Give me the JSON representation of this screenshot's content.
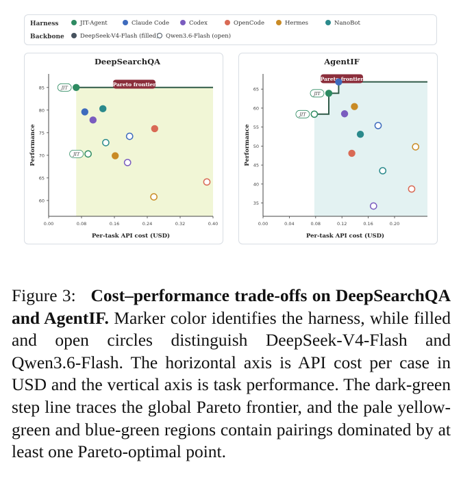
{
  "legend": {
    "harness_label": "Harness",
    "backbone_label": "Backbone",
    "harnesses": [
      {
        "name": "JIT-Agent",
        "color": "#2e8b62"
      },
      {
        "name": "Claude Code",
        "color": "#3e6bbd"
      },
      {
        "name": "Codex",
        "color": "#7a5cbf"
      },
      {
        "name": "OpenCode",
        "color": "#d96a55"
      },
      {
        "name": "Hermes",
        "color": "#c98b25"
      },
      {
        "name": "NanoBot",
        "color": "#2b8a8c"
      }
    ],
    "backbones": [
      {
        "name": "DeepSeek-V4-Flash (filled)",
        "style": "filled",
        "color": "#46525e"
      },
      {
        "name": "Qwen3.6-Flash (open)",
        "style": "open",
        "color": "#46525e"
      }
    ]
  },
  "colors": {
    "frontier": "#2f5a47",
    "pareto_badge": "#8b2e3b",
    "region_deepsearch": "#f1f6d6",
    "region_agentif": "#e3f2f2",
    "jit_label": "#2e8b62"
  },
  "chart_data": [
    {
      "type": "scatter",
      "title": "DeepSearchQA",
      "xlabel": "Per-task API cost (USD)",
      "ylabel": "Performance",
      "xlim": [
        0,
        0.4
      ],
      "ylim": [
        56.5,
        88
      ],
      "xticks": [
        0.0,
        0.08,
        0.16,
        0.24,
        0.32,
        0.4
      ],
      "yticks": [
        60,
        65,
        70,
        75,
        80,
        85
      ],
      "xtick_labels": [
        "0.00",
        "0.08",
        "0.16",
        "0.24",
        "0.32",
        "0.40"
      ],
      "ytick_labels": [
        "60",
        "65",
        "70",
        "75",
        "80",
        "85"
      ],
      "grid": false,
      "frontier_label": "Pareto frontier",
      "frontier": [
        [
          0.067,
          85
        ],
        [
          0.4,
          85
        ]
      ],
      "dominated_region": {
        "x0": 0.067,
        "y_top": 85
      },
      "points": [
        {
          "harness": "JIT-Agent",
          "backbone": "filled",
          "x": 0.067,
          "y": 85.0,
          "label": "JIT"
        },
        {
          "harness": "Claude Code",
          "backbone": "filled",
          "x": 0.088,
          "y": 79.6
        },
        {
          "harness": "Codex",
          "backbone": "filled",
          "x": 0.108,
          "y": 77.8
        },
        {
          "harness": "NanoBot",
          "backbone": "filled",
          "x": 0.132,
          "y": 80.3
        },
        {
          "harness": "OpenCode",
          "backbone": "filled",
          "x": 0.258,
          "y": 75.9
        },
        {
          "harness": "Hermes",
          "backbone": "filled",
          "x": 0.162,
          "y": 69.9
        },
        {
          "harness": "JIT-Agent",
          "backbone": "open",
          "x": 0.096,
          "y": 70.3,
          "label": "JIT"
        },
        {
          "harness": "Claude Code",
          "backbone": "open",
          "x": 0.197,
          "y": 74.2
        },
        {
          "harness": "NanoBot",
          "backbone": "open",
          "x": 0.139,
          "y": 72.8
        },
        {
          "harness": "Codex",
          "backbone": "open",
          "x": 0.192,
          "y": 68.4
        },
        {
          "harness": "Hermes",
          "backbone": "open",
          "x": 0.256,
          "y": 60.8
        },
        {
          "harness": "OpenCode",
          "backbone": "open",
          "x": 0.385,
          "y": 64.1
        }
      ]
    },
    {
      "type": "scatter",
      "title": "AgentIF",
      "xlabel": "Per-task API cost (USD)",
      "ylabel": "Performance",
      "xlim": [
        0,
        0.25
      ],
      "ylim": [
        31.5,
        69
      ],
      "xticks": [
        0.0,
        0.04,
        0.08,
        0.12,
        0.16,
        0.2
      ],
      "yticks": [
        35,
        40,
        45,
        50,
        55,
        60,
        65
      ],
      "xtick_labels": [
        "0.00",
        "0.04",
        "0.08",
        "0.12",
        "0.16",
        "0.20"
      ],
      "ytick_labels": [
        "35",
        "40",
        "45",
        "50",
        "55",
        "60",
        "65"
      ],
      "grid": false,
      "frontier_label": "Pareto frontier",
      "frontier": [
        [
          0.078,
          58.4
        ],
        [
          0.1,
          58.4
        ],
        [
          0.1,
          63.9
        ],
        [
          0.115,
          63.9
        ],
        [
          0.115,
          66.9
        ],
        [
          0.25,
          66.9
        ]
      ],
      "dominated_region": {
        "x0": 0.078
      },
      "points": [
        {
          "harness": "Claude Code",
          "backbone": "filled",
          "x": 0.115,
          "y": 66.9
        },
        {
          "harness": "JIT-Agent",
          "backbone": "filled",
          "x": 0.1,
          "y": 63.9,
          "label": "JIT"
        },
        {
          "harness": "Hermes",
          "backbone": "filled",
          "x": 0.139,
          "y": 60.4
        },
        {
          "harness": "Codex",
          "backbone": "filled",
          "x": 0.124,
          "y": 58.5
        },
        {
          "harness": "NanoBot",
          "backbone": "filled",
          "x": 0.148,
          "y": 53.1
        },
        {
          "harness": "OpenCode",
          "backbone": "filled",
          "x": 0.135,
          "y": 48.1
        },
        {
          "harness": "JIT-Agent",
          "backbone": "open",
          "x": 0.078,
          "y": 58.4,
          "label": "JIT"
        },
        {
          "harness": "Claude Code",
          "backbone": "open",
          "x": 0.175,
          "y": 55.4
        },
        {
          "harness": "Hermes",
          "backbone": "open",
          "x": 0.232,
          "y": 49.8
        },
        {
          "harness": "NanoBot",
          "backbone": "open",
          "x": 0.182,
          "y": 43.5
        },
        {
          "harness": "OpenCode",
          "backbone": "open",
          "x": 0.226,
          "y": 38.7
        },
        {
          "harness": "Codex",
          "backbone": "open",
          "x": 0.168,
          "y": 34.2
        }
      ]
    }
  ],
  "caption": {
    "prefix": "Figure 3:",
    "bold": "Cost–performance trade-offs on DeepSearchQA and AgentIF.",
    "text": " Marker color identifies the harness, while filled and open circles distinguish DeepSeek-V4-Flash and Qwen3.6-Flash. The horizontal axis is API cost per case in USD and the vertical axis is task performance. The dark-green step line traces the global Pareto frontier, and the pale yellow-green and blue-green regions contain pairings dominated by at least one Pareto-optimal point."
  }
}
